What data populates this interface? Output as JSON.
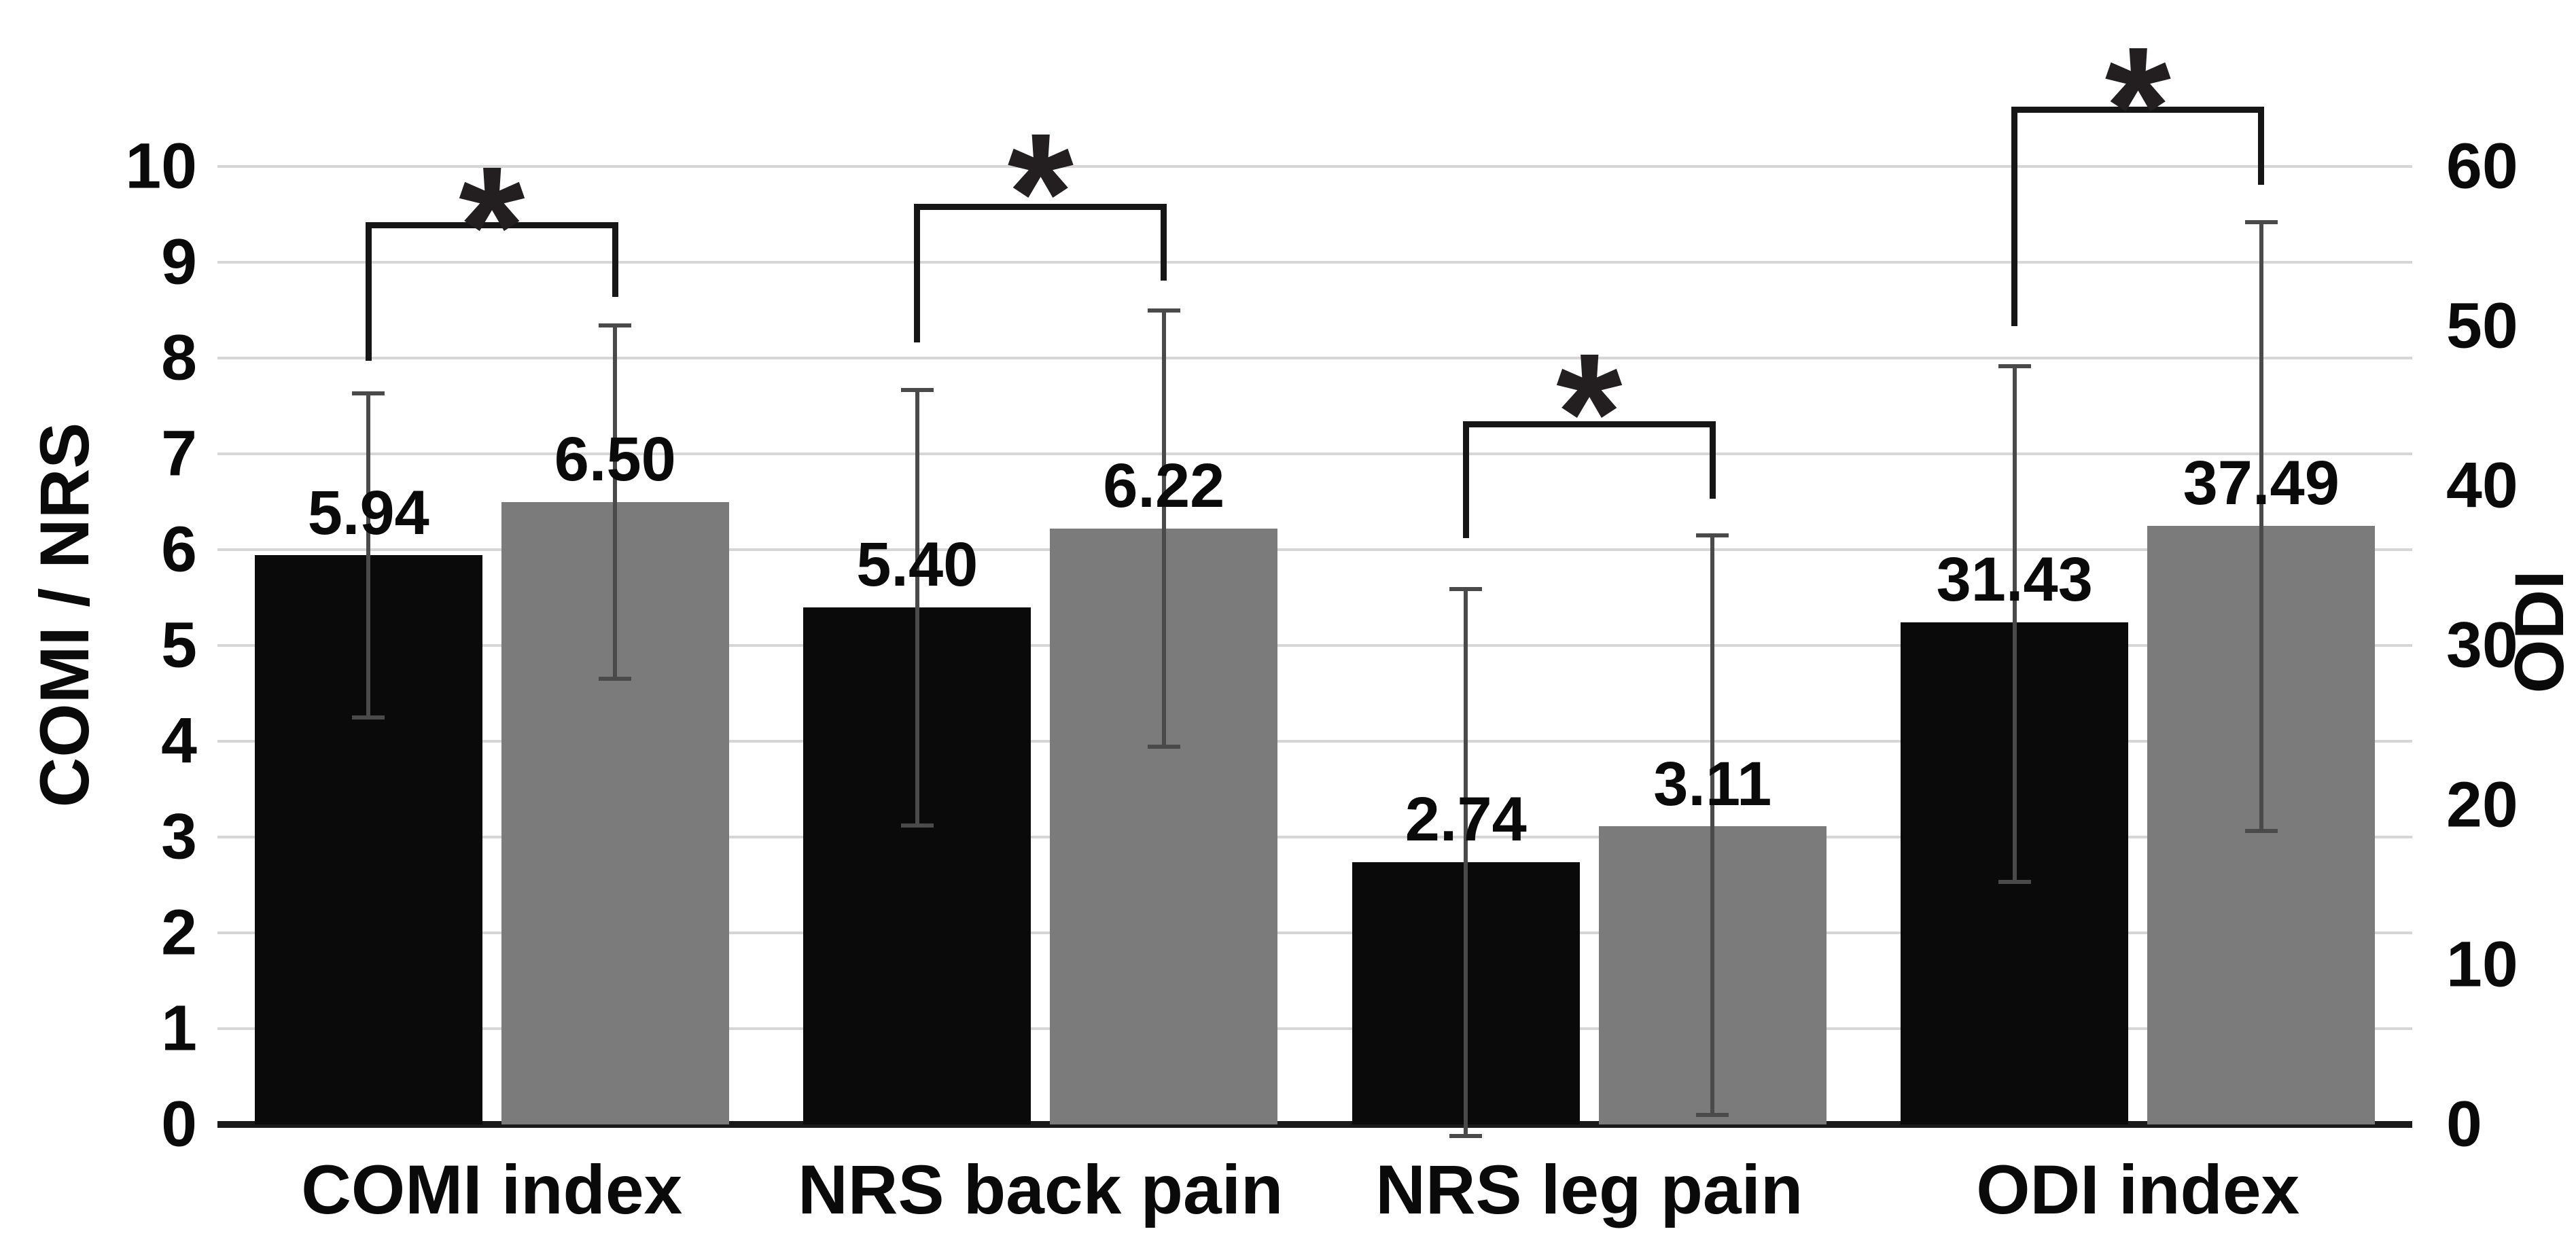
{
  "chart_data": {
    "type": "bar",
    "title": "",
    "legend": "none",
    "categories": [
      "COMI index",
      "NRS back pain",
      "NRS leg pain",
      "ODI index"
    ],
    "left_axis": {
      "label": "COMI / NRS",
      "min": 0,
      "max": 10,
      "ticks": [
        0,
        1,
        2,
        3,
        4,
        5,
        6,
        7,
        8,
        9,
        10
      ]
    },
    "right_axis": {
      "label": "ODI",
      "min": 0,
      "max": 60,
      "ticks": [
        0,
        10,
        20,
        30,
        40,
        50,
        60
      ]
    },
    "grid": "horizontal gridlines at every left-axis unit; thick dark baseline at 0",
    "series": [
      {
        "name": "black",
        "color": "#0a0a0a",
        "axis": [
          "left",
          "left",
          "left",
          "right"
        ],
        "values": [
          5.94,
          5.4,
          2.74,
          31.43
        ],
        "value_labels": [
          "5.94",
          "5.40",
          "2.74",
          "31.43"
        ],
        "error_top": [
          7.63,
          7.67,
          5.59,
          47.5
        ],
        "error_bottom": [
          4.25,
          3.12,
          -0.12,
          15.2
        ]
      },
      {
        "name": "grey",
        "color": "#7b7b7b",
        "axis": [
          "left",
          "left",
          "left",
          "right"
        ],
        "values": [
          6.5,
          6.22,
          3.11,
          37.49
        ],
        "value_labels": [
          "6.50",
          "6.22",
          "3.11",
          "37.49"
        ],
        "error_top": [
          8.34,
          8.5,
          6.15,
          56.5
        ],
        "error_bottom": [
          4.65,
          3.94,
          0.1,
          18.4
        ]
      }
    ],
    "significance_brackets": [
      {
        "group": "COMI index",
        "symbol": "*",
        "bar_y": 9.39,
        "left_leg_y": 7.97,
        "right_leg_y": 8.64,
        "asterisk_y": 10.0
      },
      {
        "group": "NRS back pain",
        "symbol": "*",
        "bar_y": 9.58,
        "left_leg_y": 8.16,
        "right_leg_y": 8.81,
        "asterisk_y": 10.35
      },
      {
        "group": "NRS leg pain",
        "symbol": "*",
        "bar_y": 7.31,
        "left_leg_y": 6.12,
        "right_leg_y": 6.53,
        "asterisk_y": 8.05
      },
      {
        "group": "ODI index",
        "symbol": "*",
        "bar_y": 10.59,
        "left_leg_y": 8.33,
        "right_leg_y": 9.81,
        "asterisk_y": 11.25
      }
    ],
    "bracket_units": "left-axis units (right-axis values divided by 6)",
    "colors": {
      "background": "#ffffff",
      "bar_black": "#0a0a0a",
      "bar_grey": "#7b7b7b",
      "gridline": "#d6d6d6",
      "baseline": "#1a1a1a",
      "error_bar": "#4a4a4a",
      "bracket": "#161616",
      "text": "#0a0a0a"
    }
  }
}
